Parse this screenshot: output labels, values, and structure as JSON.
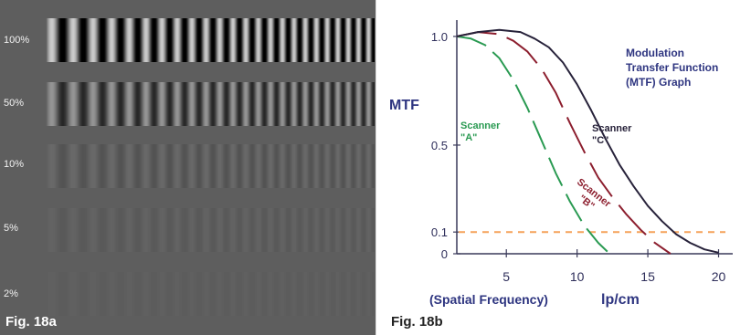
{
  "figure_a": {
    "caption": "Fig. 18a",
    "rows": [
      {
        "label": "100%",
        "contrast": 1.0
      },
      {
        "label": "50%",
        "contrast": 0.5
      },
      {
        "label": "10%",
        "contrast": 0.1
      },
      {
        "label": "5%",
        "contrast": 0.05
      },
      {
        "label": "2%",
        "contrast": 0.02
      }
    ],
    "colors": {
      "background": "#5e5e5e",
      "label": "#f2f2f2"
    }
  },
  "figure_b": {
    "caption": "Fig. 18b",
    "title_lines": [
      "Modulation",
      "Transfer Function",
      "(MTF) Graph"
    ]
  },
  "chart_data": {
    "type": "line",
    "ylabel": "MTF",
    "xlabel_parts": [
      "(Spatial Frequency)",
      "lp/cm"
    ],
    "xlim": [
      1.5,
      21
    ],
    "ylim": [
      0,
      1.05
    ],
    "x_ticks": [
      5,
      10,
      15,
      20
    ],
    "y_ticks": [
      {
        "value": 0,
        "label": "0"
      },
      {
        "value": 0.1,
        "label": "0.1"
      },
      {
        "value": 0.5,
        "label": "0.5"
      },
      {
        "value": 1.0,
        "label": "1.0"
      }
    ],
    "reference_line": {
      "y": 0.1,
      "color": "#f5a25a",
      "style": "dashed"
    },
    "series": [
      {
        "label_lines": [
          "Scanner",
          "\"A\""
        ],
        "color": "#2a9a52",
        "style": "dashed",
        "x": [
          1.5,
          2.5,
          3.5,
          4.5,
          5.5,
          6.5,
          7.5,
          8.5,
          9.5,
          10.5,
          11.5,
          12.3
        ],
        "y": [
          1.0,
          0.99,
          0.96,
          0.9,
          0.8,
          0.67,
          0.52,
          0.37,
          0.24,
          0.13,
          0.05,
          0.0
        ]
      },
      {
        "label_lines": [
          "Scanner",
          "\"B\""
        ],
        "color": "#8c1e2e",
        "style": "dashed",
        "x": [
          1.5,
          3.0,
          4.5,
          5.5,
          6.5,
          7.5,
          8.5,
          9.5,
          10.5,
          11.5,
          12.5,
          13.5,
          14.5,
          15.5,
          16.6
        ],
        "y": [
          1.0,
          1.02,
          1.01,
          0.98,
          0.93,
          0.85,
          0.74,
          0.6,
          0.47,
          0.35,
          0.26,
          0.18,
          0.11,
          0.05,
          0.0
        ]
      },
      {
        "label_lines": [
          "Scanner",
          "\"C\""
        ],
        "color": "#27223a",
        "style": "solid",
        "x": [
          1.5,
          3.0,
          4.5,
          6.0,
          7.0,
          8.0,
          9.0,
          10.0,
          11.0,
          12.0,
          13.0,
          14.0,
          15.0,
          16.0,
          17.0,
          18.0,
          19.0,
          20.0
        ],
        "y": [
          1.0,
          1.02,
          1.03,
          1.02,
          0.99,
          0.95,
          0.88,
          0.78,
          0.66,
          0.53,
          0.41,
          0.31,
          0.22,
          0.15,
          0.09,
          0.05,
          0.02,
          0.005
        ]
      }
    ]
  }
}
